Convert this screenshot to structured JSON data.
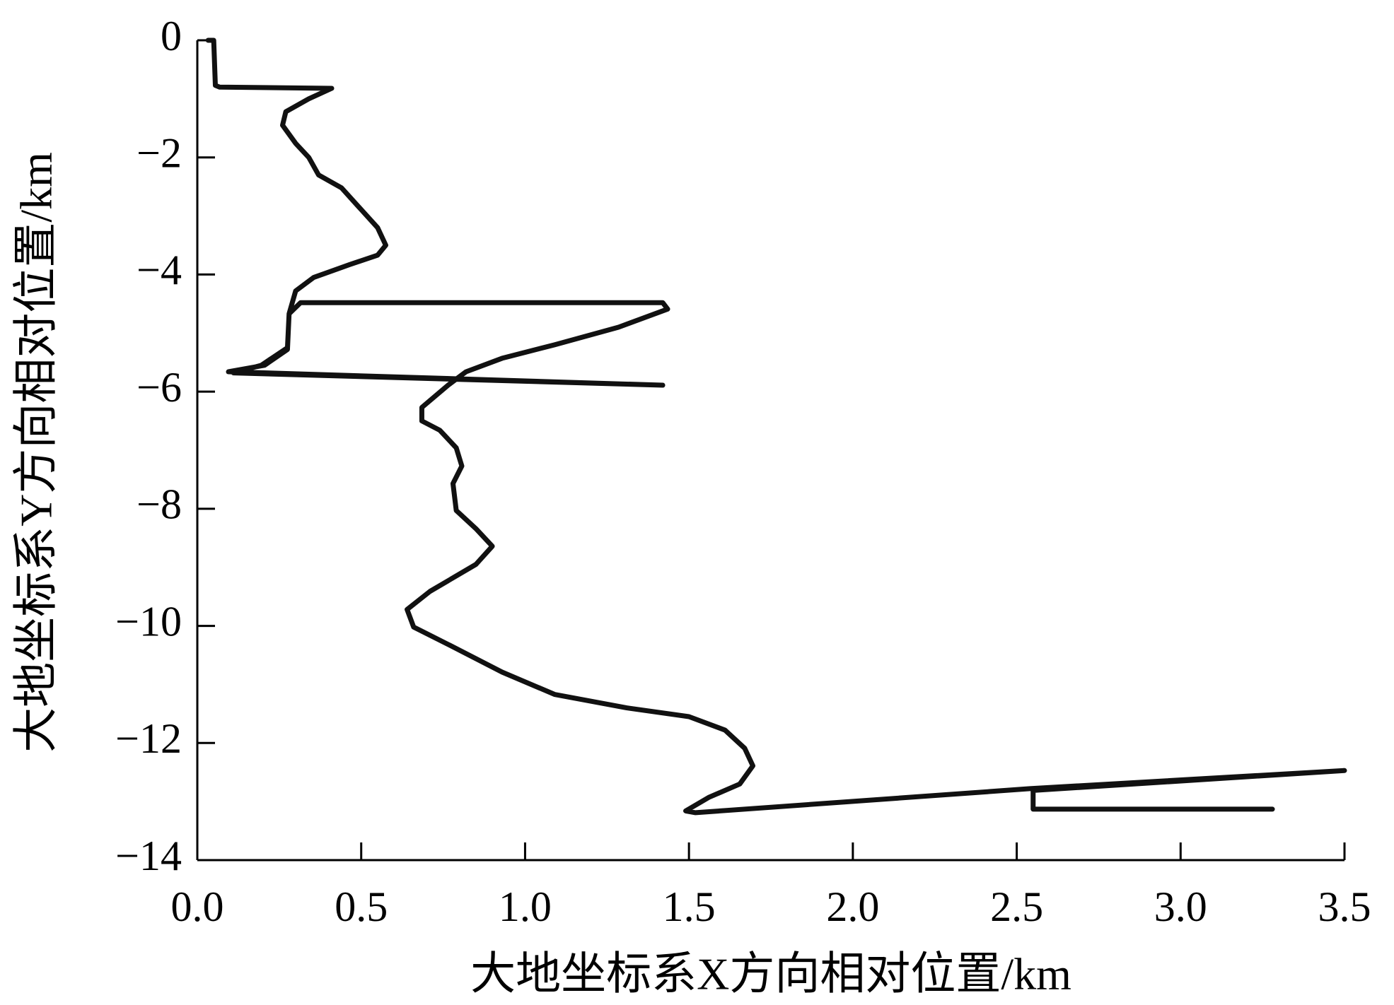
{
  "chart_data": {
    "type": "line",
    "x_label": "大地坐标系X方向相对位置/km",
    "y_label": "大地坐标系Y方向相对位置/km",
    "color": "#111111",
    "x": [
      0.033,
      0.05,
      0.055,
      0.068,
      0.41,
      0.34,
      0.27,
      0.26,
      0.3,
      0.34,
      0.37,
      0.44,
      0.49,
      0.55,
      0.575,
      0.55,
      0.465,
      0.355,
      0.3,
      0.28,
      0.275,
      0.205,
      0.095,
      1.42,
      0.11,
      0.195,
      0.275,
      0.28,
      0.315,
      1.42,
      1.435,
      1.285,
      1.09,
      0.93,
      0.82,
      0.765,
      0.685,
      0.685,
      0.74,
      0.79,
      0.807,
      0.78,
      0.79,
      0.85,
      0.9,
      0.85,
      0.71,
      0.64,
      0.66,
      0.77,
      0.93,
      1.09,
      1.31,
      1.5,
      1.61,
      1.67,
      1.695,
      1.655,
      1.56,
      1.49,
      1.52,
      2.54,
      3.5,
      2.55,
      2.55,
      3.28
    ],
    "values": [
      0,
      0,
      -0.77,
      -0.8,
      -0.82,
      -1.0,
      -1.22,
      -1.45,
      -1.76,
      -2.0,
      -2.3,
      -2.52,
      -2.83,
      -3.2,
      -3.5,
      -3.67,
      -3.83,
      -4.05,
      -4.28,
      -4.67,
      -5.28,
      -5.55,
      -5.66,
      -5.89,
      -5.68,
      -5.55,
      -5.25,
      -4.67,
      -4.48,
      -4.48,
      -4.59,
      -4.9,
      -5.2,
      -5.43,
      -5.66,
      -5.89,
      -6.27,
      -6.5,
      -6.66,
      -6.96,
      -7.27,
      -7.57,
      -8.03,
      -8.34,
      -8.64,
      -8.95,
      -9.41,
      -9.72,
      -10.02,
      -10.33,
      -10.79,
      -11.17,
      -11.4,
      -11.55,
      -11.78,
      -12.09,
      -12.39,
      -12.7,
      -12.93,
      -13.16,
      -13.19,
      -12.78,
      -12.47,
      -12.81,
      -13.13,
      -13.13
    ],
    "xlim": [
      0,
      3.5
    ],
    "ylim": [
      -14,
      0
    ],
    "xticks": [
      {
        "value": 0,
        "label": "0.0"
      },
      0.5,
      {
        "value": 1,
        "label": "1.0"
      },
      1.5,
      {
        "value": 2,
        "label": "2.0"
      },
      2.5,
      {
        "value": 3,
        "label": "3.0"
      },
      3.5
    ],
    "yticks": [
      0,
      {
        "value": -2,
        "label": "−2"
      },
      {
        "value": -4,
        "label": "−4"
      },
      {
        "value": -6,
        "label": "−6"
      },
      {
        "value": -8,
        "label": "−8"
      },
      {
        "value": -10,
        "label": "−10"
      },
      {
        "value": -12,
        "label": "−12"
      },
      {
        "value": -14,
        "label": "−14"
      }
    ],
    "grid": false
  }
}
